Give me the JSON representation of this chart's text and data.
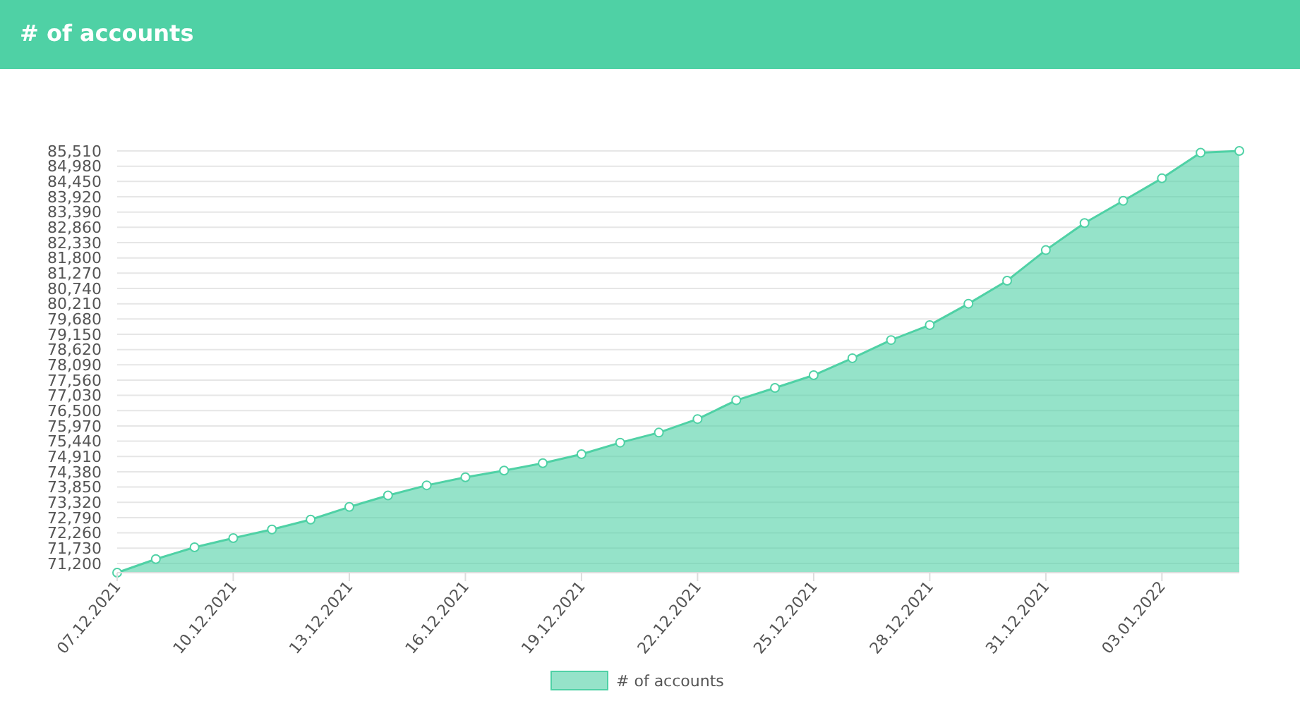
{
  "chart_data": {
    "type": "area",
    "title": "# of accounts",
    "x": [
      "2021-12-07",
      "2021-12-08",
      "2021-12-09",
      "2021-12-10",
      "2021-12-11",
      "2021-12-12",
      "2021-12-13",
      "2021-12-14",
      "2021-12-15",
      "2021-12-16",
      "2021-12-17",
      "2021-12-18",
      "2021-12-19",
      "2021-12-20",
      "2021-12-21",
      "2021-12-22",
      "2021-12-23",
      "2021-12-24",
      "2021-12-25",
      "2021-12-26",
      "2021-12-27",
      "2021-12-28",
      "2021-12-29",
      "2021-12-30",
      "2021-12-31",
      "2022-01-01",
      "2022-01-02",
      "2022-01-03",
      "2022-01-04",
      "2022-01-05"
    ],
    "series": [
      {
        "name": "# of accounts",
        "color": "#4fd1a5",
        "values": [
          70880,
          71350,
          71760,
          72080,
          72380,
          72720,
          73160,
          73560,
          73910,
          74190,
          74420,
          74680,
          74990,
          75390,
          75740,
          76210,
          76860,
          77290,
          77730,
          78320,
          78950,
          79470,
          80210,
          81010,
          82070,
          83010,
          83780,
          84560,
          85450,
          85510
        ]
      }
    ],
    "xlim": [
      "2021-12-07",
      "2022-01-05"
    ],
    "xticks": [
      {
        "value": "2021-12-07",
        "label": "07.12.2021"
      },
      {
        "value": "2021-12-10",
        "label": "10.12.2021"
      },
      {
        "value": "2021-12-13",
        "label": "13.12.2021"
      },
      {
        "value": "2021-12-16",
        "label": "16.12.2021"
      },
      {
        "value": "2021-12-19",
        "label": "19.12.2021"
      },
      {
        "value": "2021-12-22",
        "label": "22.12.2021"
      },
      {
        "value": "2021-12-25",
        "label": "25.12.2021"
      },
      {
        "value": "2021-12-28",
        "label": "28.12.2021"
      },
      {
        "value": "2021-12-31",
        "label": "31.12.2021"
      },
      {
        "value": "2022-01-03",
        "label": "03.01.2022"
      }
    ],
    "ylim": [
      70880,
      85510
    ],
    "yticks": [
      {
        "value": 71200,
        "label": "71,200"
      },
      {
        "value": 71730,
        "label": "71,730"
      },
      {
        "value": 72260,
        "label": "72,260"
      },
      {
        "value": 72790,
        "label": "72,790"
      },
      {
        "value": 73320,
        "label": "73,320"
      },
      {
        "value": 73850,
        "label": "73,850"
      },
      {
        "value": 74380,
        "label": "74,380"
      },
      {
        "value": 74910,
        "label": "74,910"
      },
      {
        "value": 75440,
        "label": "75,440"
      },
      {
        "value": 75970,
        "label": "75,970"
      },
      {
        "value": 76500,
        "label": "76,500"
      },
      {
        "value": 77030,
        "label": "77,030"
      },
      {
        "value": 77560,
        "label": "77,560"
      },
      {
        "value": 78090,
        "label": "78,090"
      },
      {
        "value": 78620,
        "label": "78,620"
      },
      {
        "value": 79150,
        "label": "79,150"
      },
      {
        "value": 79680,
        "label": "79,680"
      },
      {
        "value": 80210,
        "label": "80,210"
      },
      {
        "value": 80740,
        "label": "80,740"
      },
      {
        "value": 81270,
        "label": "81,270"
      },
      {
        "value": 81800,
        "label": "81,800"
      },
      {
        "value": 82330,
        "label": "82,330"
      },
      {
        "value": 82860,
        "label": "82,860"
      },
      {
        "value": 83390,
        "label": "83,390"
      },
      {
        "value": 83920,
        "label": "83,920"
      },
      {
        "value": 84450,
        "label": "84,450"
      },
      {
        "value": 84980,
        "label": "84,980"
      },
      {
        "value": 85510,
        "label": "85,510"
      }
    ],
    "grid": "y",
    "legend": "bottom",
    "marker": "circle"
  }
}
